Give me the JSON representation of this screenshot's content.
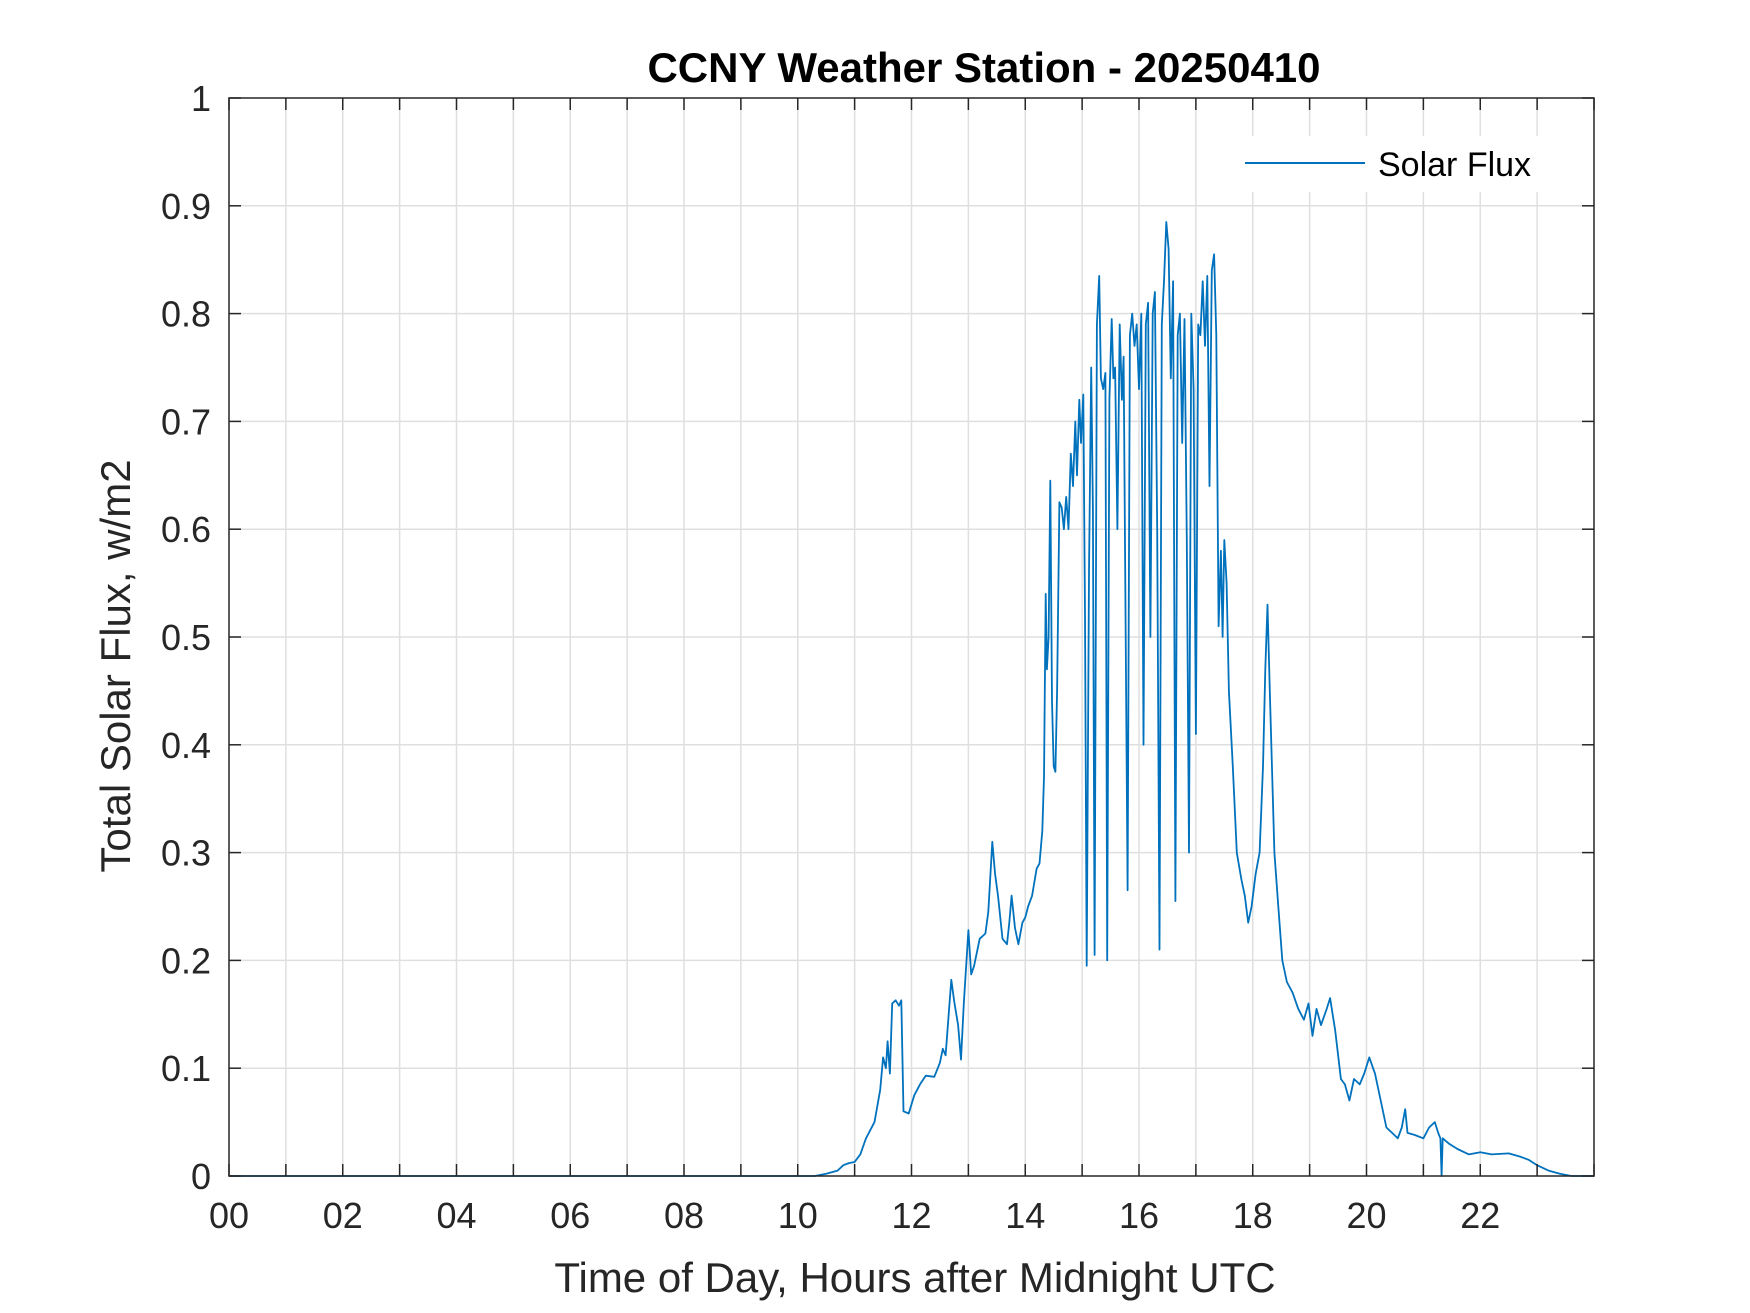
{
  "chart_data": {
    "type": "line",
    "title": "CCNY Weather Station - 20250410",
    "xlabel": "Time of Day, Hours after Midnight UTC",
    "ylabel": "Total Solar Flux, w/m2",
    "xlim": [
      0,
      24
    ],
    "ylim": [
      0,
      1
    ],
    "xticks": [
      0,
      2,
      4,
      6,
      8,
      10,
      12,
      14,
      16,
      18,
      20,
      22
    ],
    "xtick_labels": [
      "00",
      "02",
      "04",
      "06",
      "08",
      "10",
      "12",
      "14",
      "16",
      "18",
      "20",
      "22"
    ],
    "x_grid_minor_step": 1,
    "yticks": [
      0,
      0.1,
      0.2,
      0.3,
      0.4,
      0.5,
      0.6,
      0.7,
      0.8,
      0.9,
      1
    ],
    "ytick_labels": [
      "0",
      "0.1",
      "0.2",
      "0.3",
      "0.4",
      "0.5",
      "0.6",
      "0.7",
      "0.8",
      "0.9",
      "1"
    ],
    "grid": true,
    "legend": {
      "location": "top-right",
      "entries": [
        "Solar Flux"
      ]
    },
    "series": [
      {
        "name": "Solar Flux",
        "color": "#0072BD",
        "points": [
          [
            0,
            0
          ],
          [
            10.3,
            0
          ],
          [
            10.5,
            0.002
          ],
          [
            10.7,
            0.005
          ],
          [
            10.8,
            0.01
          ],
          [
            10.9,
            0.012
          ],
          [
            11.0,
            0.013
          ],
          [
            11.1,
            0.02
          ],
          [
            11.2,
            0.035
          ],
          [
            11.35,
            0.05
          ],
          [
            11.45,
            0.08
          ],
          [
            11.5,
            0.11
          ],
          [
            11.55,
            0.1
          ],
          [
            11.58,
            0.125
          ],
          [
            11.62,
            0.095
          ],
          [
            11.66,
            0.16
          ],
          [
            11.72,
            0.163
          ],
          [
            11.78,
            0.158
          ],
          [
            11.82,
            0.163
          ],
          [
            11.86,
            0.06
          ],
          [
            11.95,
            0.058
          ],
          [
            12.05,
            0.075
          ],
          [
            12.15,
            0.085
          ],
          [
            12.25,
            0.093
          ],
          [
            12.4,
            0.092
          ],
          [
            12.5,
            0.105
          ],
          [
            12.55,
            0.118
          ],
          [
            12.6,
            0.112
          ],
          [
            12.7,
            0.182
          ],
          [
            12.75,
            0.162
          ],
          [
            12.82,
            0.14
          ],
          [
            12.87,
            0.108
          ],
          [
            12.92,
            0.16
          ],
          [
            13.0,
            0.228
          ],
          [
            13.05,
            0.187
          ],
          [
            13.1,
            0.195
          ],
          [
            13.2,
            0.22
          ],
          [
            13.3,
            0.225
          ],
          [
            13.35,
            0.245
          ],
          [
            13.42,
            0.31
          ],
          [
            13.47,
            0.28
          ],
          [
            13.52,
            0.26
          ],
          [
            13.6,
            0.22
          ],
          [
            13.68,
            0.215
          ],
          [
            13.72,
            0.235
          ],
          [
            13.76,
            0.26
          ],
          [
            13.82,
            0.23
          ],
          [
            13.88,
            0.215
          ],
          [
            13.95,
            0.235
          ],
          [
            14.0,
            0.24
          ],
          [
            14.05,
            0.25
          ],
          [
            14.12,
            0.26
          ],
          [
            14.2,
            0.285
          ],
          [
            14.25,
            0.29
          ],
          [
            14.3,
            0.32
          ],
          [
            14.33,
            0.37
          ],
          [
            14.36,
            0.54
          ],
          [
            14.38,
            0.47
          ],
          [
            14.41,
            0.5
          ],
          [
            14.44,
            0.645
          ],
          [
            14.47,
            0.44
          ],
          [
            14.5,
            0.38
          ],
          [
            14.53,
            0.375
          ],
          [
            14.56,
            0.45
          ],
          [
            14.6,
            0.625
          ],
          [
            14.64,
            0.62
          ],
          [
            14.68,
            0.6
          ],
          [
            14.72,
            0.63
          ],
          [
            14.76,
            0.6
          ],
          [
            14.8,
            0.67
          ],
          [
            14.84,
            0.64
          ],
          [
            14.88,
            0.7
          ],
          [
            14.91,
            0.65
          ],
          [
            14.95,
            0.72
          ],
          [
            14.98,
            0.68
          ],
          [
            15.02,
            0.725
          ],
          [
            15.05,
            0.52
          ],
          [
            15.08,
            0.195
          ],
          [
            15.12,
            0.56
          ],
          [
            15.16,
            0.75
          ],
          [
            15.19,
            0.62
          ],
          [
            15.22,
            0.205
          ],
          [
            15.26,
            0.79
          ],
          [
            15.3,
            0.835
          ],
          [
            15.33,
            0.74
          ],
          [
            15.37,
            0.73
          ],
          [
            15.41,
            0.745
          ],
          [
            15.44,
            0.2
          ],
          [
            15.48,
            0.72
          ],
          [
            15.52,
            0.795
          ],
          [
            15.55,
            0.74
          ],
          [
            15.58,
            0.75
          ],
          [
            15.62,
            0.6
          ],
          [
            15.66,
            0.79
          ],
          [
            15.7,
            0.72
          ],
          [
            15.73,
            0.76
          ],
          [
            15.76,
            0.55
          ],
          [
            15.8,
            0.265
          ],
          [
            15.84,
            0.78
          ],
          [
            15.88,
            0.8
          ],
          [
            15.92,
            0.77
          ],
          [
            15.96,
            0.79
          ],
          [
            16.0,
            0.73
          ],
          [
            16.04,
            0.8
          ],
          [
            16.08,
            0.4
          ],
          [
            16.12,
            0.79
          ],
          [
            16.16,
            0.81
          ],
          [
            16.2,
            0.5
          ],
          [
            16.24,
            0.8
          ],
          [
            16.28,
            0.82
          ],
          [
            16.32,
            0.6
          ],
          [
            16.36,
            0.21
          ],
          [
            16.4,
            0.79
          ],
          [
            16.44,
            0.83
          ],
          [
            16.48,
            0.885
          ],
          [
            16.52,
            0.86
          ],
          [
            16.56,
            0.74
          ],
          [
            16.6,
            0.83
          ],
          [
            16.64,
            0.255
          ],
          [
            16.68,
            0.78
          ],
          [
            16.72,
            0.8
          ],
          [
            16.76,
            0.68
          ],
          [
            16.8,
            0.795
          ],
          [
            16.84,
            0.59
          ],
          [
            16.88,
            0.3
          ],
          [
            16.92,
            0.8
          ],
          [
            16.96,
            0.73
          ],
          [
            17.0,
            0.41
          ],
          [
            17.04,
            0.79
          ],
          [
            17.08,
            0.78
          ],
          [
            17.12,
            0.83
          ],
          [
            17.16,
            0.77
          ],
          [
            17.2,
            0.835
          ],
          [
            17.24,
            0.64
          ],
          [
            17.28,
            0.84
          ],
          [
            17.32,
            0.855
          ],
          [
            17.36,
            0.78
          ],
          [
            17.4,
            0.51
          ],
          [
            17.44,
            0.58
          ],
          [
            17.47,
            0.5
          ],
          [
            17.5,
            0.59
          ],
          [
            17.54,
            0.55
          ],
          [
            17.58,
            0.45
          ],
          [
            17.65,
            0.38
          ],
          [
            17.72,
            0.3
          ],
          [
            17.8,
            0.275
          ],
          [
            17.86,
            0.26
          ],
          [
            17.92,
            0.235
          ],
          [
            17.98,
            0.25
          ],
          [
            18.05,
            0.28
          ],
          [
            18.12,
            0.3
          ],
          [
            18.18,
            0.38
          ],
          [
            18.22,
            0.47
          ],
          [
            18.26,
            0.53
          ],
          [
            18.3,
            0.45
          ],
          [
            18.38,
            0.3
          ],
          [
            18.45,
            0.25
          ],
          [
            18.52,
            0.2
          ],
          [
            18.6,
            0.18
          ],
          [
            18.7,
            0.17
          ],
          [
            18.8,
            0.155
          ],
          [
            18.9,
            0.145
          ],
          [
            18.98,
            0.16
          ],
          [
            19.05,
            0.13
          ],
          [
            19.12,
            0.155
          ],
          [
            19.2,
            0.14
          ],
          [
            19.3,
            0.155
          ],
          [
            19.36,
            0.165
          ],
          [
            19.45,
            0.135
          ],
          [
            19.55,
            0.09
          ],
          [
            19.62,
            0.085
          ],
          [
            19.7,
            0.07
          ],
          [
            19.78,
            0.09
          ],
          [
            19.88,
            0.085
          ],
          [
            19.96,
            0.095
          ],
          [
            20.05,
            0.11
          ],
          [
            20.15,
            0.095
          ],
          [
            20.25,
            0.07
          ],
          [
            20.35,
            0.045
          ],
          [
            20.45,
            0.04
          ],
          [
            20.55,
            0.035
          ],
          [
            20.62,
            0.045
          ],
          [
            20.68,
            0.062
          ],
          [
            20.72,
            0.04
          ],
          [
            20.85,
            0.038
          ],
          [
            21.0,
            0.035
          ],
          [
            21.1,
            0.045
          ],
          [
            21.2,
            0.05
          ],
          [
            21.26,
            0.04
          ],
          [
            21.3,
            0.035
          ],
          [
            21.32,
            0.0
          ],
          [
            21.34,
            0.035
          ],
          [
            21.45,
            0.03
          ],
          [
            21.6,
            0.025
          ],
          [
            21.8,
            0.02
          ],
          [
            22.0,
            0.022
          ],
          [
            22.2,
            0.02
          ],
          [
            22.5,
            0.021
          ],
          [
            22.7,
            0.018
          ],
          [
            22.85,
            0.015
          ],
          [
            23.0,
            0.01
          ],
          [
            23.2,
            0.005
          ],
          [
            23.4,
            0.002
          ],
          [
            23.6,
            0.0
          ],
          [
            24.0,
            0.0
          ]
        ]
      }
    ]
  }
}
